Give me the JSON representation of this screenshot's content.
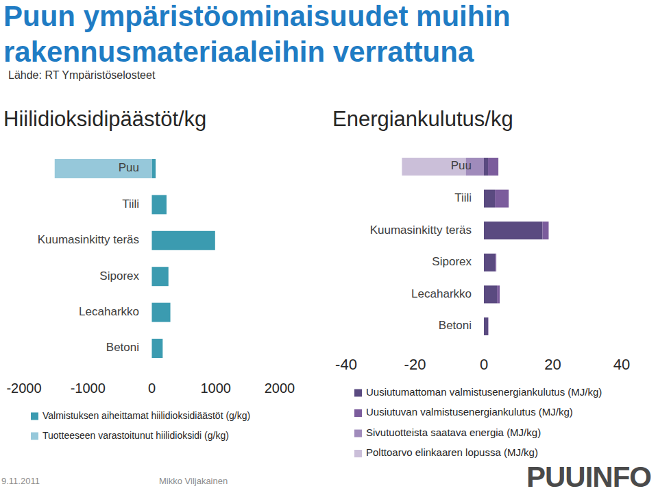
{
  "slide": {
    "title": "Puun ympäristöominaisuudet muihin rakennusmateriaaleihin verrattuna",
    "source": "Lähde: RT Ympäristöselosteet",
    "date": "9.11.2011",
    "author": "Mikko Viljakainen",
    "logo": "PUUINFO"
  },
  "chart_data": [
    {
      "type": "bar",
      "orientation": "horizontal",
      "stacked": true,
      "legend": "bottom",
      "title": "Hiilidioksidipäästöt/kg",
      "categories": [
        "Puu",
        "Tiili",
        "Kuumasinkitty teräs",
        "Siporex",
        "Lecaharkko",
        "Betoni"
      ],
      "series": [
        {
          "name": "Valmistuksen aiheittamat hiilidioksidiäästöt (g/kg)",
          "color": "#3b9bb0",
          "values": [
            60,
            230,
            990,
            260,
            290,
            170
          ]
        },
        {
          "name": "Tuotteeseen varastoitunut hiilidioksidi (g/kg)",
          "color": "#96c8da",
          "values": [
            -1520,
            0,
            0,
            0,
            0,
            0
          ]
        }
      ],
      "xlim": [
        -2000,
        2000
      ],
      "xticks": [
        -2000,
        -1000,
        0,
        1000,
        2000
      ],
      "grid": false
    },
    {
      "type": "bar",
      "orientation": "horizontal",
      "stacked": true,
      "legend": "bottom",
      "title": "Energiankulutus/kg",
      "categories": [
        "Puu",
        "Tiili",
        "Kuumasinkitty teräs",
        "Siporex",
        "Lecaharkko",
        "Betoni"
      ],
      "series": [
        {
          "name": "Uusiutumattoman valmistusenergiankulutus (MJ/kg)",
          "color": "#5a4a80",
          "values": [
            1.2,
            3.2,
            17,
            3.3,
            3.8,
            1.2
          ]
        },
        {
          "name": "Uusiutuvan valmistusenergiankulutus (MJ/kg)",
          "color": "#7b5c9c",
          "values": [
            3,
            4,
            1.8,
            0.3,
            0.8,
            0.1
          ]
        },
        {
          "name": "Sivutuotteista saatava energia (MJ/kg)",
          "color": "#a08bbb",
          "values": [
            -5.3,
            0,
            0,
            0,
            0,
            0
          ]
        },
        {
          "name": "Polttoarvo elinkaaren lopussa (MJ/kg)",
          "color": "#cbbfd9",
          "values": [
            -18.5,
            0,
            0,
            0,
            0,
            0
          ]
        }
      ],
      "xlim": [
        -40,
        40
      ],
      "xticks": [
        -40,
        -20,
        0,
        20,
        40
      ],
      "grid": false
    }
  ]
}
